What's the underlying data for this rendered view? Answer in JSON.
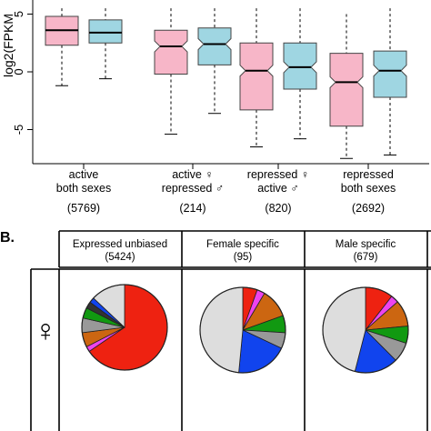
{
  "panel_b_label": "B.",
  "female_symbol": "♀",
  "chart_data": [
    {
      "type": "boxplot",
      "ylabel": "log2(FPKM",
      "ylim": [
        -7.8,
        5.5
      ],
      "y_ticks": [
        "-5",
        "0",
        "5"
      ],
      "y_tick_values": [
        -5,
        0,
        5
      ],
      "series": [
        {
          "name": "female",
          "color": "#f7b6c8"
        },
        {
          "name": "male",
          "color": "#9fd6e2"
        }
      ],
      "groups": [
        {
          "label_lines": [
            "active",
            "both sexes"
          ],
          "count": "(5769)",
          "boxes": [
            {
              "series": "female",
              "whisker_low": -1.2,
              "q1": 2.3,
              "median": 3.6,
              "q3": 4.8,
              "whisker_high": 5.5,
              "notched": false
            },
            {
              "series": "male",
              "whisker_low": -0.6,
              "q1": 2.5,
              "median": 3.4,
              "q3": 4.5,
              "whisker_high": 5.5,
              "notched": false
            }
          ]
        },
        {
          "label_lines": [
            "active ♀",
            "repressed ♂"
          ],
          "count": "(214)",
          "boxes": [
            {
              "series": "female",
              "whisker_low": -5.4,
              "q1": -0.2,
              "median": 2.2,
              "q3": 3.6,
              "whisker_high": 5.5,
              "notched": true
            },
            {
              "series": "male",
              "whisker_low": -3.6,
              "q1": 0.6,
              "median": 2.4,
              "q3": 3.8,
              "whisker_high": 5.5,
              "notched": true
            }
          ]
        },
        {
          "label_lines": [
            "repressed ♀",
            "active ♂"
          ],
          "count": "(820)",
          "boxes": [
            {
              "series": "female",
              "whisker_low": -6.5,
              "q1": -3.3,
              "median": 0.1,
              "q3": 2.5,
              "whisker_high": 5.5,
              "notched": true
            },
            {
              "series": "male",
              "whisker_low": -5.8,
              "q1": -1.5,
              "median": 0.4,
              "q3": 2.5,
              "whisker_high": 5.5,
              "notched": true
            }
          ]
        },
        {
          "label_lines": [
            "repressed",
            "both sexes"
          ],
          "count": "(2692)",
          "boxes": [
            {
              "series": "female",
              "whisker_low": -7.5,
              "q1": -4.7,
              "median": -0.9,
              "q3": 1.6,
              "whisker_high": 5.0,
              "notched": true
            },
            {
              "series": "male",
              "whisker_low": -7.2,
              "q1": -2.2,
              "median": 0.1,
              "q3": 1.8,
              "whisker_high": 5.5,
              "notched": true
            }
          ]
        }
      ]
    },
    {
      "type": "pie",
      "columns": [
        {
          "title": "Expressed unbiased",
          "count": "(5424)"
        },
        {
          "title": "Female specific",
          "count": "(95)"
        },
        {
          "title": "Male specific",
          "count": "(679)"
        }
      ],
      "rows": [
        {
          "label": "♀"
        },
        {
          "label": ""
        }
      ],
      "pies_row1": [
        {
          "start_angle_deg": 0,
          "slices": [
            {
              "value": 0.655,
              "color": "#ee2211"
            },
            {
              "value": 0.02,
              "color": "#ee44ee"
            },
            {
              "value": 0.055,
              "color": "#cc6611"
            },
            {
              "value": 0.055,
              "color": "#999999"
            },
            {
              "value": 0.04,
              "color": "#119911"
            },
            {
              "value": 0.025,
              "color": "#333333"
            },
            {
              "value": 0.02,
              "color": "#1144ee"
            },
            {
              "value": 0.13,
              "color": "#dddddd"
            }
          ]
        },
        {
          "start_angle_deg": 0,
          "slices": [
            {
              "value": 0.055,
              "color": "#ee2211"
            },
            {
              "value": 0.03,
              "color": "#ee44ee"
            },
            {
              "value": 0.11,
              "color": "#cc6611"
            },
            {
              "value": 0.065,
              "color": "#119911"
            },
            {
              "value": 0.06,
              "color": "#999999"
            },
            {
              "value": 0.195,
              "color": "#1144ee"
            },
            {
              "value": 0.485,
              "color": "#dddddd"
            }
          ]
        },
        {
          "start_angle_deg": 0,
          "slices": [
            {
              "value": 0.105,
              "color": "#ee2211"
            },
            {
              "value": 0.03,
              "color": "#ee44ee"
            },
            {
              "value": 0.1,
              "color": "#cc6611"
            },
            {
              "value": 0.065,
              "color": "#119911"
            },
            {
              "value": 0.075,
              "color": "#999999"
            },
            {
              "value": 0.165,
              "color": "#1144ee"
            },
            {
              "value": 0.46,
              "color": "#dddddd"
            }
          ]
        }
      ]
    }
  ]
}
